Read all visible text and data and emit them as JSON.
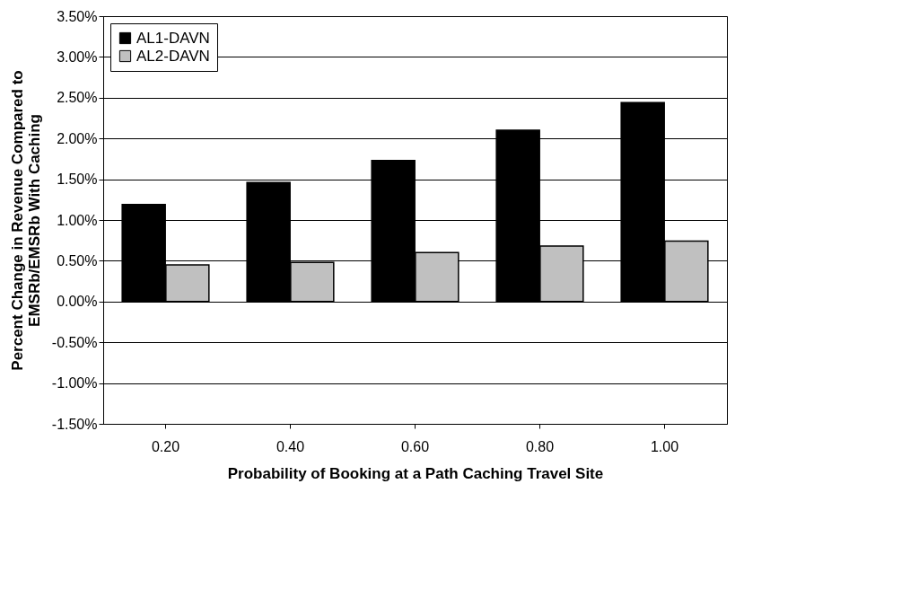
{
  "chart_data": {
    "type": "bar",
    "xlabel": "Probability of Booking at a Path Caching Travel Site",
    "ylabel": "Percent Change in Revenue Compared to\nEMSRb/EMSRb With Caching",
    "categories": [
      "0.20",
      "0.40",
      "0.60",
      "0.80",
      "1.00"
    ],
    "series": [
      {
        "name": "AL1-DAVN",
        "color": "#000000",
        "values": [
          1.19,
          1.46,
          1.73,
          2.1,
          2.44
        ]
      },
      {
        "name": "AL2-DAVN",
        "color": "#c0c0c0",
        "values": [
          0.45,
          0.48,
          0.6,
          0.68,
          0.74
        ]
      }
    ],
    "ylim": [
      -1.5,
      3.5
    ],
    "yticks": [
      {
        "value": -1.5,
        "label": "-1.50%"
      },
      {
        "value": -1.0,
        "label": "-1.00%"
      },
      {
        "value": -0.5,
        "label": "-0.50%"
      },
      {
        "value": 0,
        "label": "0.00%"
      },
      {
        "value": 0.5,
        "label": "0.50%"
      },
      {
        "value": 1.0,
        "label": "1.00%"
      },
      {
        "value": 1.5,
        "label": "1.50%"
      },
      {
        "value": 2.0,
        "label": "2.00%"
      },
      {
        "value": 2.5,
        "label": "2.50%"
      },
      {
        "value": 3.0,
        "label": "3.00%"
      },
      {
        "value": 3.5,
        "label": "3.50%"
      }
    ],
    "grid": "y",
    "legend": "top left"
  }
}
